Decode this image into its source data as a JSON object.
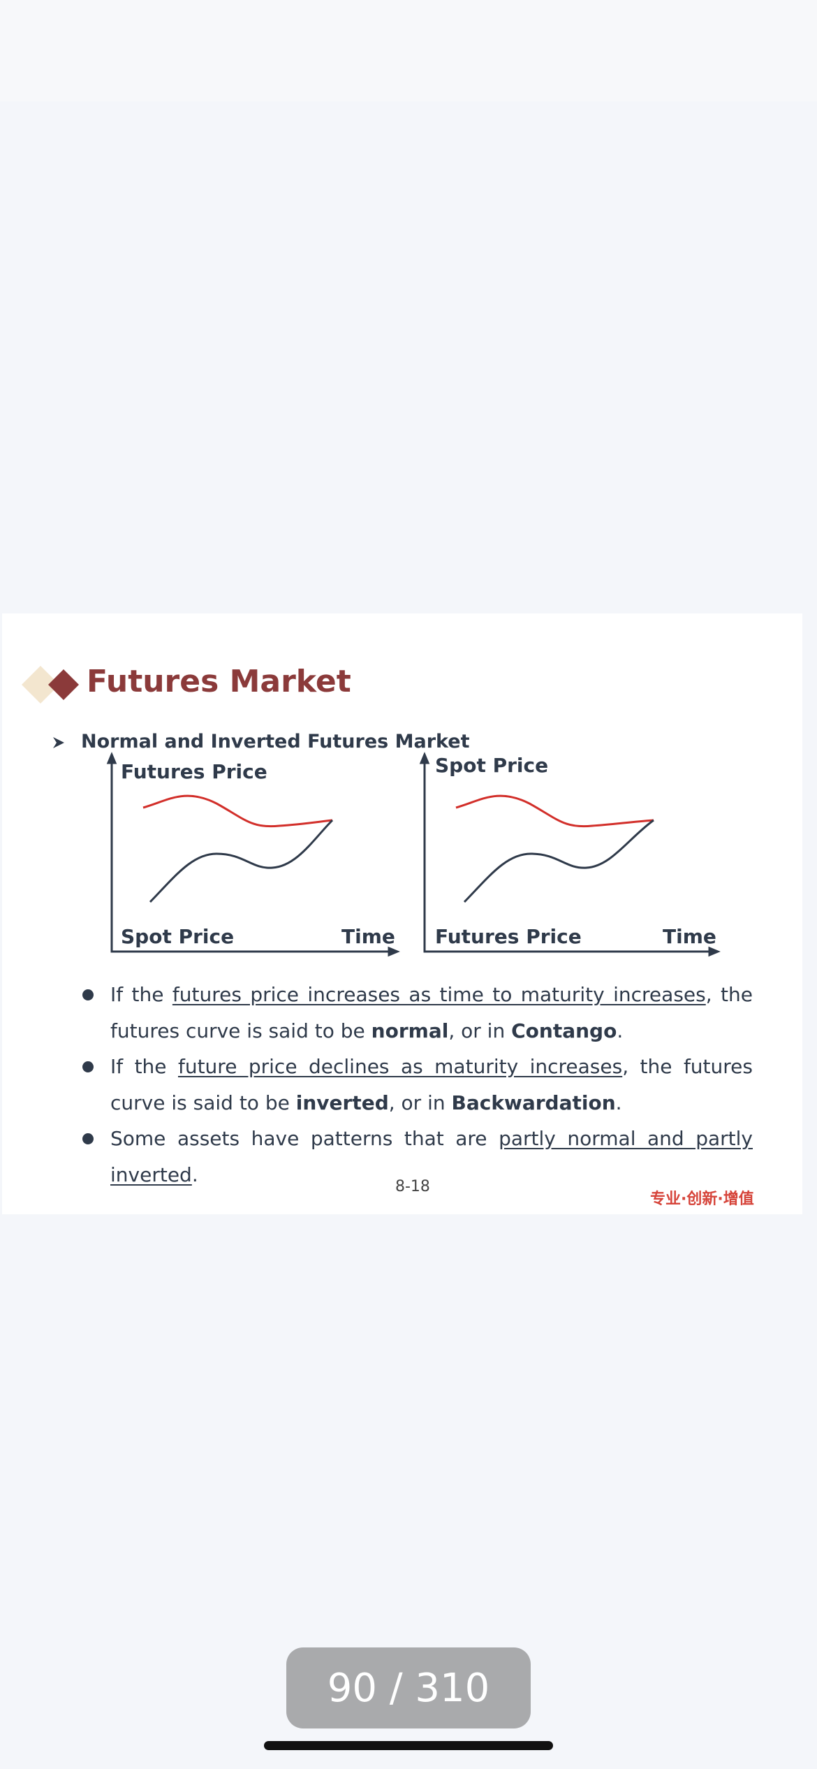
{
  "slide": {
    "title": "Futures Market",
    "subtitle": "Normal and Inverted Futures Market",
    "diagram_left": {
      "y_label": "Futures Price",
      "curve_label": "Spot Price",
      "x_label": "Time"
    },
    "diagram_right": {
      "y_label": "Spot Price",
      "curve_label": "Futures Price",
      "x_label": "Time"
    },
    "bullets": [
      {
        "segments": [
          {
            "text": "If the "
          },
          {
            "text": "futures price increases as time to maturity increases",
            "style": "underline"
          },
          {
            "text": ", the futures curve is said to be "
          },
          {
            "text": "normal",
            "style": "bold"
          },
          {
            "text": ", or in "
          },
          {
            "text": "Contango",
            "style": "bold"
          },
          {
            "text": "."
          }
        ]
      },
      {
        "segments": [
          {
            "text": "If the "
          },
          {
            "text": "future price declines as maturity increases",
            "style": "underline"
          },
          {
            "text": ", the futures curve is said to be "
          },
          {
            "text": "inverted",
            "style": "bold"
          },
          {
            "text": ", or in "
          },
          {
            "text": "Backwardation",
            "style": "bold"
          },
          {
            "text": "."
          }
        ]
      },
      {
        "segments": [
          {
            "text": "Some assets have patterns that are "
          },
          {
            "text": "partly normal and partly inverted",
            "style": "underline"
          },
          {
            "text": "."
          }
        ]
      }
    ],
    "page_number": "8-18",
    "slogan": "专业·创新·增值"
  },
  "viewer": {
    "page_indicator": "90 / 310"
  }
}
